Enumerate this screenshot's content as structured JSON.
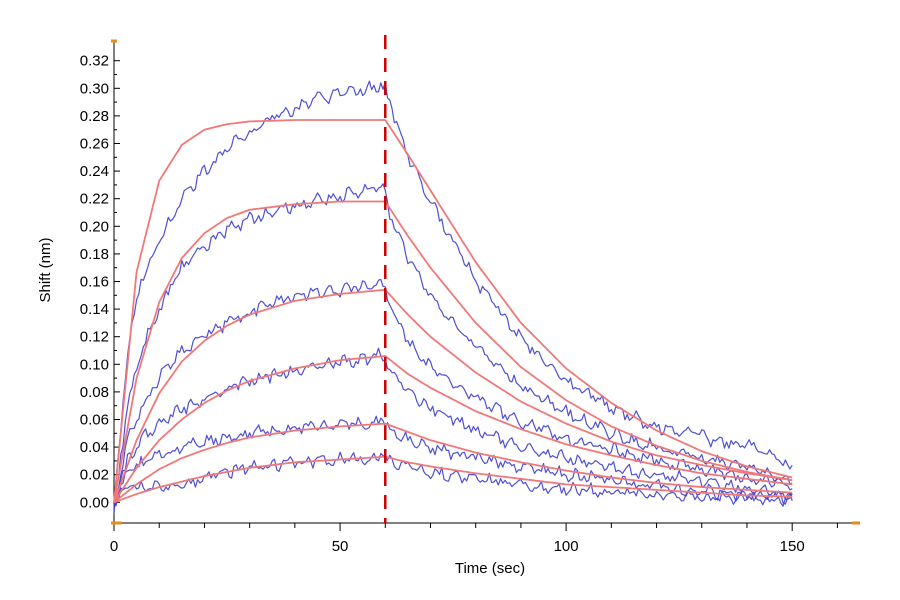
{
  "chart_data": {
    "type": "line",
    "title": "",
    "xlabel": "Time (sec)",
    "ylabel": "Shift (nm)",
    "xlim": [
      0,
      165
    ],
    "ylim": [
      -0.015,
      0.335
    ],
    "x_ticks": [
      0,
      50,
      100,
      150
    ],
    "x_ticks_labels": [
      "0",
      "50",
      "100",
      "150"
    ],
    "y_ticks": [
      0.0,
      0.02,
      0.04,
      0.06,
      0.08,
      0.1,
      0.12,
      0.14,
      0.16,
      0.18,
      0.2,
      0.22,
      0.24,
      0.26,
      0.28,
      0.3,
      0.32
    ],
    "y_ticks_labels": [
      "0.00",
      "0.02",
      "0.04",
      "0.06",
      "0.08",
      "0.10",
      "0.12",
      "0.14",
      "0.16",
      "0.18",
      "0.20",
      "0.22",
      "0.24",
      "0.26",
      "0.28",
      "0.30",
      "0.32"
    ],
    "grid": false,
    "legend": "none",
    "dissociation_start": 60,
    "end_time": 150,
    "colors": {
      "measured": "#3c3cd2",
      "fit": "#f07878",
      "marker_line": "#cc0000",
      "axis_marker": "#e88a1c"
    },
    "series": [
      {
        "fit": {
          "x": [
            0,
            5,
            10,
            15,
            20,
            25,
            30,
            40,
            50,
            60,
            65,
            70,
            80,
            90,
            100,
            110,
            120,
            130,
            140,
            150
          ],
          "y": [
            0.0,
            0.167,
            0.233,
            0.259,
            0.27,
            0.274,
            0.276,
            0.277,
            0.277,
            0.277,
            0.252,
            0.226,
            0.174,
            0.13,
            0.097,
            0.072,
            0.052,
            0.037,
            0.026,
            0.018
          ]
        },
        "measured": {
          "x": [
            0,
            3,
            6,
            10,
            15,
            20,
            25,
            30,
            35,
            40,
            45,
            50,
            55,
            59,
            60,
            61,
            65,
            70,
            80,
            90,
            100,
            110,
            120,
            130,
            135,
            140,
            145,
            150
          ],
          "y": [
            -0.005,
            0.11,
            0.16,
            0.19,
            0.22,
            0.24,
            0.257,
            0.268,
            0.278,
            0.285,
            0.292,
            0.296,
            0.299,
            0.302,
            0.3,
            0.29,
            0.252,
            0.218,
            0.16,
            0.118,
            0.088,
            0.068,
            0.055,
            0.048,
            0.042,
            0.043,
            0.035,
            0.025
          ]
        }
      },
      {
        "fit": {
          "x": [
            0,
            5,
            10,
            15,
            20,
            25,
            30,
            40,
            50,
            60,
            65,
            70,
            80,
            90,
            100,
            110,
            120,
            130,
            140,
            150
          ],
          "y": [
            0.0,
            0.09,
            0.145,
            0.177,
            0.195,
            0.206,
            0.212,
            0.216,
            0.218,
            0.218,
            0.193,
            0.17,
            0.13,
            0.098,
            0.074,
            0.055,
            0.041,
            0.03,
            0.022,
            0.016
          ]
        },
        "measured": {
          "x": [
            0,
            3,
            6,
            10,
            15,
            20,
            25,
            30,
            35,
            40,
            45,
            50,
            55,
            59,
            60,
            61,
            65,
            70,
            80,
            90,
            100,
            110,
            120,
            130,
            140,
            150
          ],
          "y": [
            -0.005,
            0.07,
            0.11,
            0.14,
            0.17,
            0.185,
            0.198,
            0.205,
            0.21,
            0.215,
            0.219,
            0.222,
            0.226,
            0.229,
            0.226,
            0.21,
            0.178,
            0.148,
            0.112,
            0.085,
            0.065,
            0.05,
            0.04,
            0.032,
            0.025,
            0.014
          ]
        }
      },
      {
        "fit": {
          "x": [
            0,
            5,
            10,
            15,
            20,
            25,
            30,
            40,
            50,
            60,
            65,
            70,
            80,
            90,
            100,
            110,
            120,
            130,
            140,
            150
          ],
          "y": [
            0.0,
            0.045,
            0.079,
            0.102,
            0.117,
            0.128,
            0.136,
            0.146,
            0.151,
            0.154,
            0.136,
            0.12,
            0.094,
            0.073,
            0.057,
            0.044,
            0.034,
            0.027,
            0.021,
            0.016
          ]
        },
        "measured": {
          "x": [
            0,
            3,
            6,
            10,
            15,
            20,
            25,
            30,
            35,
            40,
            45,
            50,
            55,
            59,
            60,
            61,
            65,
            70,
            80,
            90,
            100,
            110,
            120,
            130,
            140,
            150
          ],
          "y": [
            -0.003,
            0.045,
            0.07,
            0.09,
            0.11,
            0.12,
            0.13,
            0.138,
            0.145,
            0.149,
            0.152,
            0.154,
            0.156,
            0.158,
            0.156,
            0.142,
            0.118,
            0.098,
            0.075,
            0.058,
            0.046,
            0.038,
            0.03,
            0.024,
            0.018,
            0.012
          ]
        }
      },
      {
        "fit": {
          "x": [
            0,
            5,
            10,
            15,
            20,
            25,
            30,
            40,
            50,
            60,
            65,
            70,
            80,
            90,
            100,
            110,
            120,
            130,
            140,
            150
          ],
          "y": [
            0.0,
            0.025,
            0.045,
            0.06,
            0.072,
            0.081,
            0.088,
            0.097,
            0.103,
            0.106,
            0.093,
            0.083,
            0.066,
            0.053,
            0.042,
            0.034,
            0.027,
            0.021,
            0.017,
            0.013
          ]
        },
        "measured": {
          "x": [
            0,
            3,
            6,
            10,
            15,
            20,
            25,
            30,
            35,
            40,
            45,
            50,
            55,
            59,
            60,
            61,
            65,
            70,
            80,
            90,
            100,
            110,
            120,
            130,
            140,
            150
          ],
          "y": [
            0.0,
            0.03,
            0.045,
            0.058,
            0.068,
            0.075,
            0.082,
            0.088,
            0.092,
            0.096,
            0.099,
            0.101,
            0.103,
            0.107,
            0.105,
            0.096,
            0.082,
            0.068,
            0.052,
            0.04,
            0.032,
            0.025,
            0.02,
            0.015,
            0.01,
            0.006
          ]
        }
      },
      {
        "fit": {
          "x": [
            0,
            5,
            10,
            15,
            20,
            25,
            30,
            40,
            50,
            60,
            65,
            70,
            80,
            90,
            100,
            110,
            120,
            130,
            140,
            150
          ],
          "y": [
            0.0,
            0.013,
            0.024,
            0.032,
            0.038,
            0.043,
            0.047,
            0.052,
            0.055,
            0.057,
            0.051,
            0.045,
            0.036,
            0.029,
            0.023,
            0.018,
            0.014,
            0.011,
            0.009,
            0.007
          ]
        },
        "measured": {
          "x": [
            0,
            3,
            6,
            10,
            15,
            20,
            25,
            30,
            35,
            40,
            45,
            50,
            55,
            59,
            60,
            61,
            65,
            70,
            80,
            90,
            100,
            110,
            120,
            130,
            140,
            150
          ],
          "y": [
            0.0,
            0.02,
            0.028,
            0.034,
            0.04,
            0.044,
            0.047,
            0.05,
            0.052,
            0.054,
            0.055,
            0.056,
            0.057,
            0.059,
            0.057,
            0.052,
            0.046,
            0.04,
            0.032,
            0.026,
            0.02,
            0.016,
            0.012,
            0.008,
            0.005,
            0.003
          ]
        }
      },
      {
        "fit": {
          "x": [
            0,
            5,
            10,
            15,
            20,
            25,
            30,
            40,
            50,
            60,
            65,
            70,
            80,
            90,
            100,
            110,
            120,
            130,
            140,
            150
          ],
          "y": [
            0.0,
            0.006,
            0.011,
            0.015,
            0.019,
            0.022,
            0.025,
            0.029,
            0.031,
            0.033,
            0.029,
            0.026,
            0.021,
            0.017,
            0.013,
            0.011,
            0.009,
            0.007,
            0.005,
            0.004
          ]
        },
        "measured": {
          "x": [
            0,
            3,
            6,
            10,
            15,
            20,
            25,
            30,
            35,
            40,
            45,
            50,
            55,
            59,
            60,
            61,
            65,
            70,
            80,
            90,
            100,
            110,
            120,
            130,
            140,
            150
          ],
          "y": [
            0.0,
            0.01,
            0.012,
            0.01,
            0.012,
            0.018,
            0.022,
            0.025,
            0.027,
            0.029,
            0.03,
            0.031,
            0.032,
            0.034,
            0.033,
            0.03,
            0.026,
            0.022,
            0.017,
            0.013,
            0.01,
            0.008,
            0.006,
            0.004,
            0.003,
            0.002
          ]
        }
      }
    ]
  }
}
